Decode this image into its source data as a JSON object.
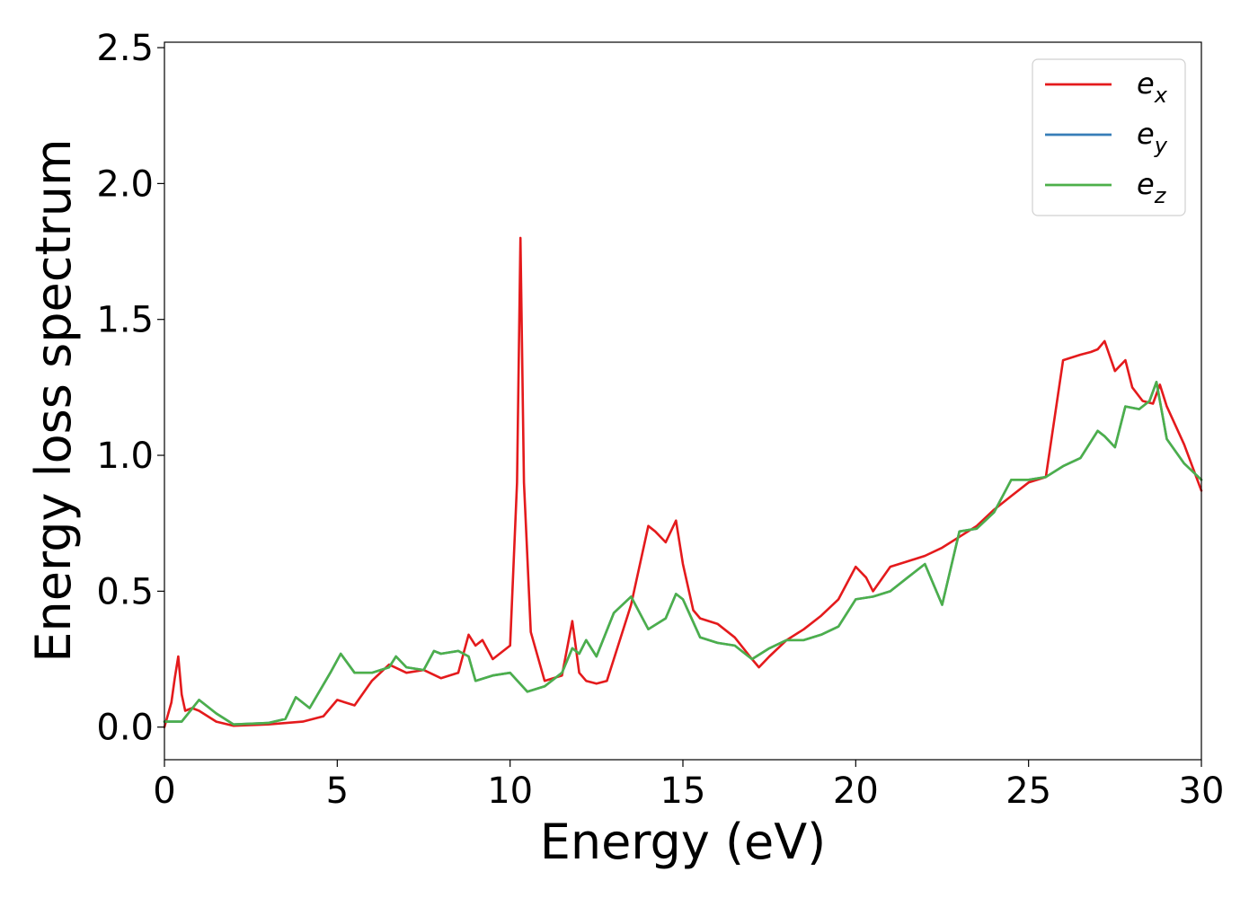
{
  "chart_data": {
    "type": "line",
    "xlabel": "Energy (eV)",
    "ylabel": "Energy loss spectrum",
    "xlim": [
      0,
      30
    ],
    "ylim": [
      -0.12,
      2.52
    ],
    "xticks": [
      "0",
      "5",
      "10",
      "15",
      "20",
      "25",
      "30"
    ],
    "yticks": [
      "0.0",
      "0.5",
      "1.0",
      "1.5",
      "2.0",
      "2.5"
    ],
    "grid": false,
    "legend_position": "top-right",
    "series": [
      {
        "name": "e",
        "subscript": "x",
        "color": "#e41a1c",
        "x": [
          0,
          0.2,
          0.3,
          0.4,
          0.5,
          0.6,
          0.8,
          1.0,
          1.5,
          2.0,
          3.0,
          4.0,
          4.6,
          5.0,
          5.5,
          6.0,
          6.5,
          7.0,
          7.5,
          8.0,
          8.5,
          8.8,
          9.0,
          9.2,
          9.5,
          10.0,
          10.2,
          10.3,
          10.4,
          10.6,
          11.0,
          11.5,
          11.8,
          12.0,
          12.2,
          12.5,
          12.8,
          13.0,
          13.5,
          14.0,
          14.2,
          14.5,
          14.8,
          15.0,
          15.3,
          15.5,
          16.0,
          16.5,
          17.0,
          17.2,
          17.5,
          18.0,
          18.5,
          19.0,
          19.5,
          20.0,
          20.3,
          20.5,
          21.0,
          21.5,
          22.0,
          22.5,
          23.0,
          23.5,
          24.0,
          24.5,
          25.0,
          25.5,
          26.0,
          26.5,
          26.8,
          27.0,
          27.2,
          27.5,
          27.8,
          28.0,
          28.3,
          28.6,
          28.8,
          29.0,
          29.5,
          30.0
        ],
        "y": [
          0.0,
          0.09,
          0.18,
          0.26,
          0.12,
          0.06,
          0.07,
          0.06,
          0.02,
          0.005,
          0.01,
          0.02,
          0.04,
          0.1,
          0.08,
          0.17,
          0.23,
          0.2,
          0.21,
          0.18,
          0.2,
          0.34,
          0.3,
          0.32,
          0.25,
          0.3,
          0.9,
          1.8,
          0.9,
          0.35,
          0.17,
          0.19,
          0.39,
          0.2,
          0.17,
          0.16,
          0.17,
          0.25,
          0.45,
          0.74,
          0.72,
          0.68,
          0.76,
          0.6,
          0.43,
          0.4,
          0.38,
          0.33,
          0.25,
          0.22,
          0.26,
          0.32,
          0.36,
          0.41,
          0.47,
          0.59,
          0.55,
          0.5,
          0.59,
          0.61,
          0.63,
          0.66,
          0.7,
          0.74,
          0.8,
          0.85,
          0.9,
          0.92,
          1.35,
          1.37,
          1.38,
          1.39,
          1.42,
          1.31,
          1.35,
          1.25,
          1.2,
          1.19,
          1.26,
          1.18,
          1.04,
          0.87
        ]
      },
      {
        "name": "e",
        "subscript": "y",
        "color": "#377eb8",
        "x": [
          0,
          0.5,
          1.0,
          1.5,
          2.0,
          3.0,
          3.5,
          3.8,
          4.2,
          4.8,
          5.1,
          5.5,
          6.0,
          6.5,
          6.7,
          7.0,
          7.5,
          7.8,
          8.0,
          8.5,
          8.8,
          9.0,
          9.5,
          10.0,
          10.5,
          11.0,
          11.5,
          11.8,
          12.0,
          12.2,
          12.5,
          13.0,
          13.5,
          14.0,
          14.5,
          14.8,
          15.0,
          15.5,
          16.0,
          16.5,
          17.0,
          17.5,
          18.0,
          18.5,
          19.0,
          19.5,
          20.0,
          20.5,
          21.0,
          21.5,
          22.0,
          22.5,
          23.0,
          23.5,
          24.0,
          24.5,
          25.0,
          25.5,
          26.0,
          26.5,
          27.0,
          27.2,
          27.5,
          27.8,
          28.2,
          28.5,
          28.7,
          29.0,
          29.5,
          30.0
        ],
        "y": [
          0.02,
          0.02,
          0.1,
          0.05,
          0.01,
          0.015,
          0.03,
          0.11,
          0.07,
          0.2,
          0.27,
          0.2,
          0.2,
          0.22,
          0.26,
          0.22,
          0.21,
          0.28,
          0.27,
          0.28,
          0.26,
          0.17,
          0.19,
          0.2,
          0.13,
          0.15,
          0.2,
          0.29,
          0.27,
          0.32,
          0.26,
          0.42,
          0.48,
          0.36,
          0.4,
          0.49,
          0.47,
          0.33,
          0.31,
          0.3,
          0.25,
          0.29,
          0.32,
          0.32,
          0.34,
          0.37,
          0.47,
          0.48,
          0.5,
          0.55,
          0.6,
          0.45,
          0.72,
          0.73,
          0.79,
          0.91,
          0.91,
          0.92,
          0.96,
          0.99,
          1.09,
          1.07,
          1.03,
          1.18,
          1.17,
          1.2,
          1.27,
          1.06,
          0.97,
          0.91
        ]
      },
      {
        "name": "e",
        "subscript": "z",
        "color": "#4daf4a",
        "x": [
          0,
          0.5,
          1.0,
          1.5,
          2.0,
          3.0,
          3.5,
          3.8,
          4.2,
          4.8,
          5.1,
          5.5,
          6.0,
          6.5,
          6.7,
          7.0,
          7.5,
          7.8,
          8.0,
          8.5,
          8.8,
          9.0,
          9.5,
          10.0,
          10.5,
          11.0,
          11.5,
          11.8,
          12.0,
          12.2,
          12.5,
          13.0,
          13.5,
          14.0,
          14.5,
          14.8,
          15.0,
          15.5,
          16.0,
          16.5,
          17.0,
          17.5,
          18.0,
          18.5,
          19.0,
          19.5,
          20.0,
          20.5,
          21.0,
          21.5,
          22.0,
          22.5,
          23.0,
          23.5,
          24.0,
          24.5,
          25.0,
          25.5,
          26.0,
          26.5,
          27.0,
          27.2,
          27.5,
          27.8,
          28.2,
          28.5,
          28.7,
          29.0,
          29.5,
          30.0
        ],
        "y": [
          0.02,
          0.02,
          0.1,
          0.05,
          0.01,
          0.015,
          0.03,
          0.11,
          0.07,
          0.2,
          0.27,
          0.2,
          0.2,
          0.22,
          0.26,
          0.22,
          0.21,
          0.28,
          0.27,
          0.28,
          0.26,
          0.17,
          0.19,
          0.2,
          0.13,
          0.15,
          0.2,
          0.29,
          0.27,
          0.32,
          0.26,
          0.42,
          0.48,
          0.36,
          0.4,
          0.49,
          0.47,
          0.33,
          0.31,
          0.3,
          0.25,
          0.29,
          0.32,
          0.32,
          0.34,
          0.37,
          0.47,
          0.48,
          0.5,
          0.55,
          0.6,
          0.45,
          0.72,
          0.73,
          0.79,
          0.91,
          0.91,
          0.92,
          0.96,
          0.99,
          1.09,
          1.07,
          1.03,
          1.18,
          1.17,
          1.2,
          1.27,
          1.06,
          0.97,
          0.91
        ]
      }
    ]
  }
}
